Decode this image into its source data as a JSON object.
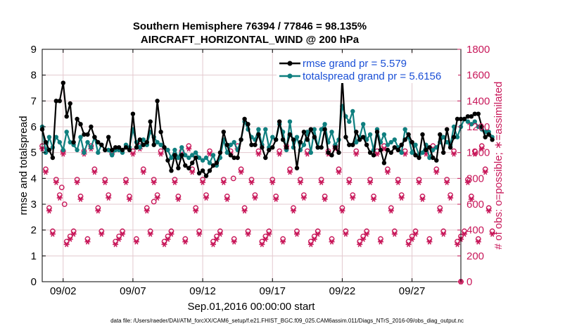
{
  "chart_data": {
    "type": "line",
    "title_line1": "Southern Hemisphere 76394 / 77846 = 98.135%",
    "title_line2": "AIRCRAFT_HORIZONTAL_WIND @ 200 hPa",
    "xlabel": "Sep.01,2016 00:00:00 start",
    "ylabel": "rmse and totalspread",
    "ylabel_right": "# of obs: o=possible; ∗=assimilated",
    "footer": "data file: /Users/raeder/DAI/ATM_forcXX/CAM6_setup/f.e21.FHIST_BGC.f09_025.CAM6assim.011/Diags_NTrS_2016-09/obs_diag_output.nc",
    "xlim": [
      0.5,
      30.5
    ],
    "ylim": [
      0,
      9
    ],
    "ylim_right": [
      0,
      1800
    ],
    "xticks": [
      {
        "value": 2,
        "label": "09/02"
      },
      {
        "value": 7,
        "label": "09/07"
      },
      {
        "value": 12,
        "label": "09/12"
      },
      {
        "value": 17,
        "label": "09/17"
      },
      {
        "value": 22,
        "label": "09/22"
      },
      {
        "value": 27,
        "label": "09/27"
      }
    ],
    "yticks": [
      "0",
      "1",
      "2",
      "3",
      "4",
      "5",
      "6",
      "7",
      "8",
      "9"
    ],
    "yticks_right": [
      "0",
      "200",
      "400",
      "600",
      "800",
      "1000",
      "1200",
      "1400",
      "1600",
      "1800"
    ],
    "legend": {
      "position": "top-right",
      "entries": [
        {
          "label": "rmse grand pr = 5.579",
          "color": "#000000"
        },
        {
          "label": "totalspread grand pr = 5.6156",
          "color": "#0f7f7f"
        }
      ]
    },
    "colors": {
      "rmse": "#000000",
      "spread": "#0f7f7f",
      "obs": "#c8185a",
      "grid": "#e3c9cf"
    },
    "x_start": 0.5,
    "x_step": 0.25,
    "series": [
      {
        "name": "rmse",
        "values": [
          5.9,
          5.4,
          5.1,
          4.8,
          7.0,
          7.0,
          7.7,
          6.4,
          6.9,
          5.4,
          6.3,
          6.1,
          5.7,
          5.7,
          6.0,
          5.6,
          5.4,
          5.3,
          5.1,
          5.6,
          5.1,
          5.2,
          5.2,
          5.1,
          5.2,
          5.1,
          6.5,
          5.2,
          5.5,
          5.3,
          5.4,
          6.2,
          5.3,
          7.0,
          5.8,
          5.2,
          4.7,
          4.3,
          4.9,
          4.4,
          4.9,
          4.5,
          4.4,
          4.6,
          4.8,
          4.2,
          4.3,
          4.1,
          4.3,
          4.5,
          4.6,
          5.0,
          5.8,
          5.3,
          4.9,
          4.8,
          4.8,
          5.5,
          6.3,
          6.1,
          5.3,
          5.3,
          5.7,
          5.2,
          4.8,
          5.1,
          5.2,
          5.5,
          6.2,
          5.5,
          5.2,
          5.7,
          5.5,
          4.4,
          5.4,
          5.8,
          5.5,
          5.9,
          5.6,
          5.2,
          5.2,
          5.9,
          5.0,
          4.9,
          5.2,
          5.0,
          7.9,
          5.6,
          5.3,
          5.3,
          5.8,
          5.5,
          5.6,
          5.3,
          5.0,
          4.9,
          5.8,
          5.1,
          4.6,
          5.1,
          5.0,
          5.2,
          5.1,
          5.3,
          5.5,
          5.7,
          5.4,
          4.9,
          4.8,
          5.7,
          5.1,
          5.2,
          4.8,
          4.7,
          5.7,
          5.0,
          5.9,
          5.2,
          5.6,
          6.3,
          6.3,
          6.3,
          6.4,
          6.4,
          6.5,
          6.5,
          6.0,
          5.6,
          5.7,
          5.5
        ]
      },
      {
        "name": "totalspread",
        "values": [
          6.0,
          5.0,
          5.6,
          5.2,
          5.6,
          5.4,
          5.1,
          5.8,
          5.4,
          5.3,
          5.1,
          5.6,
          5.0,
          5.4,
          5.2,
          5.6,
          5.0,
          5.3,
          5.1,
          5.1,
          4.9,
          5.1,
          5.1,
          5.0,
          5.3,
          5.2,
          5.9,
          5.4,
          5.2,
          5.5,
          5.3,
          5.8,
          5.6,
          5.4,
          5.3,
          5.2,
          5.1,
          4.8,
          5.1,
          4.8,
          5.2,
          4.9,
          4.8,
          4.9,
          5.0,
          4.8,
          4.7,
          4.8,
          4.6,
          4.9,
          4.5,
          4.8,
          5.5,
          5.0,
          5.3,
          5.4,
          5.1,
          5.5,
          6.2,
          5.9,
          5.6,
          5.5,
          5.9,
          5.3,
          5.9,
          5.2,
          5.6,
          5.5,
          6.1,
          5.8,
          5.1,
          6.2,
          5.2,
          5.6,
          5.1,
          5.3,
          5.8,
          5.0,
          5.9,
          5.2,
          5.9,
          6.1,
          5.4,
          5.8,
          5.3,
          5.5,
          6.8,
          6.4,
          6.2,
          6.6,
          5.4,
          5.6,
          6.1,
          5.5,
          5.7,
          5.1,
          5.9,
          5.4,
          5.7,
          5.3,
          5.4,
          5.5,
          5.2,
          5.0,
          5.9,
          5.6,
          5.0,
          5.3,
          4.9,
          5.0,
          5.3,
          4.8,
          5.1,
          5.2,
          5.4,
          5.6,
          5.4,
          5.3,
          6.0,
          5.6,
          6.0,
          6.3,
          6.2,
          6.1,
          6.2,
          6.0,
          5.9,
          5.8,
          5.8,
          5.6
        ]
      }
    ],
    "obs_pattern": [
      1040,
      860,
      560,
      380,
      780,
      660,
      1000,
      300,
      340,
      380,
      780,
      650,
      1000,
      320
    ],
    "obs_possible_extra": [
      {
        "x": 1.9,
        "value": 730
      },
      {
        "x": 2.1,
        "value": 600
      },
      {
        "x": 8.5,
        "value": 620
      },
      {
        "x": 14.2,
        "value": 800
      }
    ],
    "obs_last": {
      "x": 30.5,
      "value": 0
    }
  }
}
